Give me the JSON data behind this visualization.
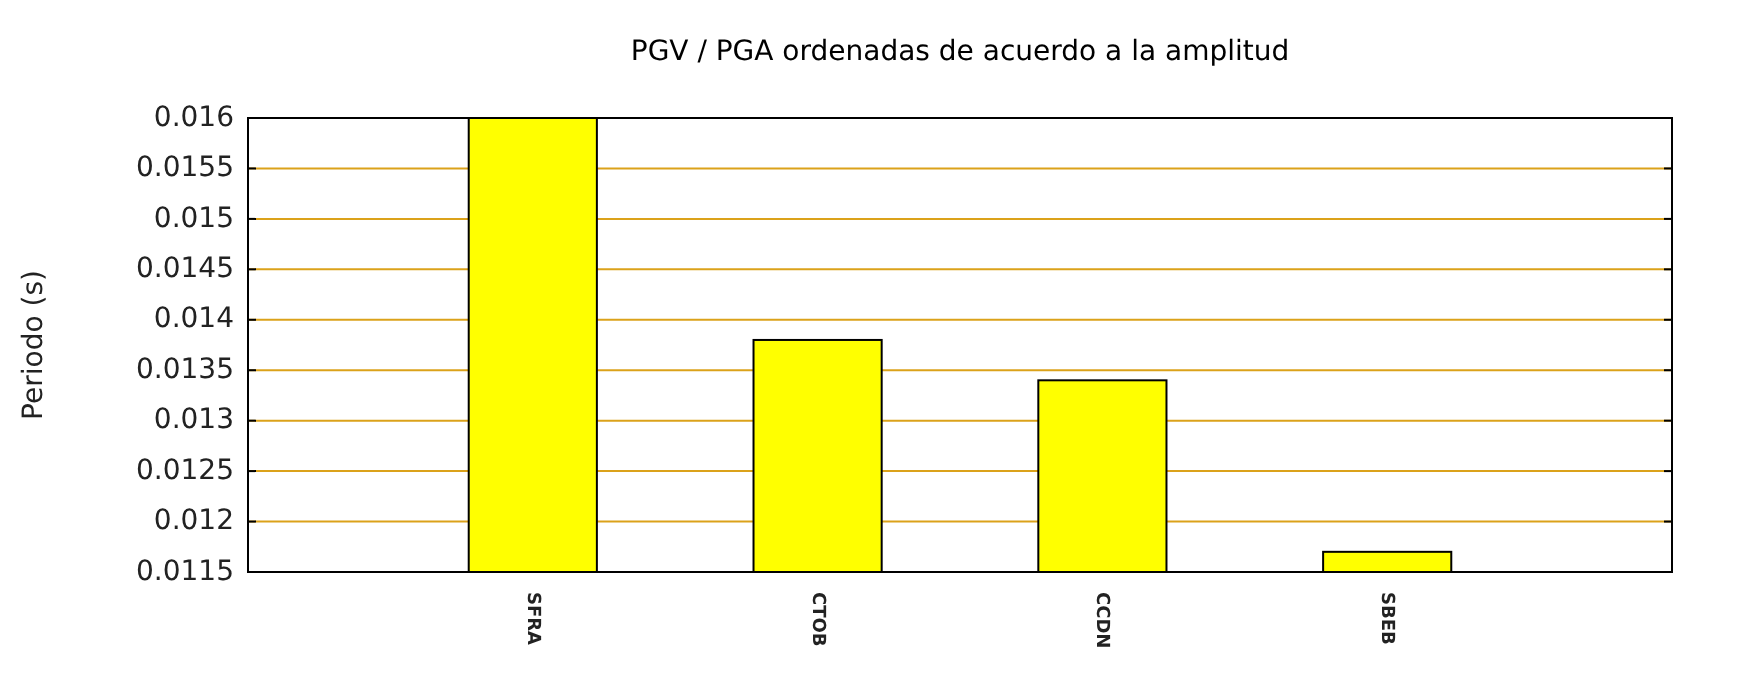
{
  "chart_data": {
    "type": "bar",
    "title": "PGV / PGA ordenadas de acuerdo a la amplitud",
    "ylabel": "Periodo (s)",
    "categories": [
      null,
      "SFRA",
      "CTOB",
      "CCDN",
      "SBEB",
      null
    ],
    "series": [
      {
        "color": "#ffff00",
        "values": [
          null,
          0.016,
          0.0138,
          0.0134,
          0.0117,
          null
        ]
      }
    ],
    "ylim": [
      0.0115,
      0.016
    ],
    "yticks": [
      0.0115,
      0.012,
      0.0125,
      0.013,
      0.0135,
      0.014,
      0.0145,
      0.015,
      0.0155,
      0.016
    ],
    "grid": "y"
  }
}
